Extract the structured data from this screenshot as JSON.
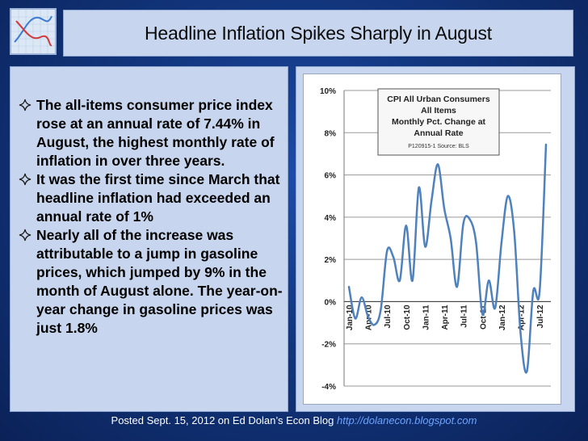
{
  "title": "Headline Inflation Spikes Sharply in August",
  "bullets": [
    "The all-items consumer price index rose at an annual rate of 7.44% in August, the highest monthly rate of inflation in over three years.",
    "It was the first time since March that headline inflation had exceeded an annual rate of 1%",
    "Nearly all of the increase was attributable to a jump in gasoline prices, which jumped by 9% in the month of August alone. The year-on-year change in gasoline prices was just 1.8%"
  ],
  "footer": {
    "text": "Posted Sept. 15, 2012 on Ed Dolan’s Econ Blog",
    "link": "http://dolanecon.blogspot.com"
  },
  "colors": {
    "line": "#4f81bd",
    "background": "#12367e",
    "panel": "#c7d6ee"
  },
  "chart_data": {
    "type": "line",
    "title_lines": [
      "CPI All Urban Consumers",
      "All Items",
      "Monthly Pct. Change at",
      "Annual Rate"
    ],
    "source": "P120915-1 Source: BLS",
    "ylim": [
      -4,
      10
    ],
    "yticks": [
      "10%",
      "8%",
      "6%",
      "4%",
      "2%",
      "0%",
      "-2%",
      "-4%"
    ],
    "xtick_labels": [
      "Jan-10",
      "Apr-10",
      "Jul-10",
      "Oct-10",
      "Jan-11",
      "Apr-11",
      "Jul-11",
      "Oct-11",
      "Jan-12",
      "Apr-12",
      "Jul-12"
    ],
    "x": [
      "Jan-10",
      "Feb-10",
      "Mar-10",
      "Apr-10",
      "May-10",
      "Jun-10",
      "Jul-10",
      "Aug-10",
      "Sep-10",
      "Oct-10",
      "Nov-10",
      "Dec-10",
      "Jan-11",
      "Feb-11",
      "Mar-11",
      "Apr-11",
      "May-11",
      "Jun-11",
      "Jul-11",
      "Aug-11",
      "Sep-11",
      "Oct-11",
      "Nov-11",
      "Dec-11",
      "Jan-12",
      "Feb-12",
      "Mar-12",
      "Apr-12",
      "May-12",
      "Jun-12",
      "Jul-12",
      "Aug-12"
    ],
    "values": [
      0.7,
      -0.8,
      0.2,
      -0.7,
      -1.1,
      -0.4,
      2.4,
      2.1,
      1.0,
      3.6,
      1.0,
      5.4,
      2.6,
      4.8,
      6.5,
      4.4,
      3.0,
      0.7,
      3.7,
      3.9,
      2.8,
      -0.6,
      1.0,
      -0.3,
      2.8,
      5.0,
      3.3,
      -1.5,
      -3.3,
      0.5,
      0.5,
      7.44
    ],
    "grid": true
  }
}
